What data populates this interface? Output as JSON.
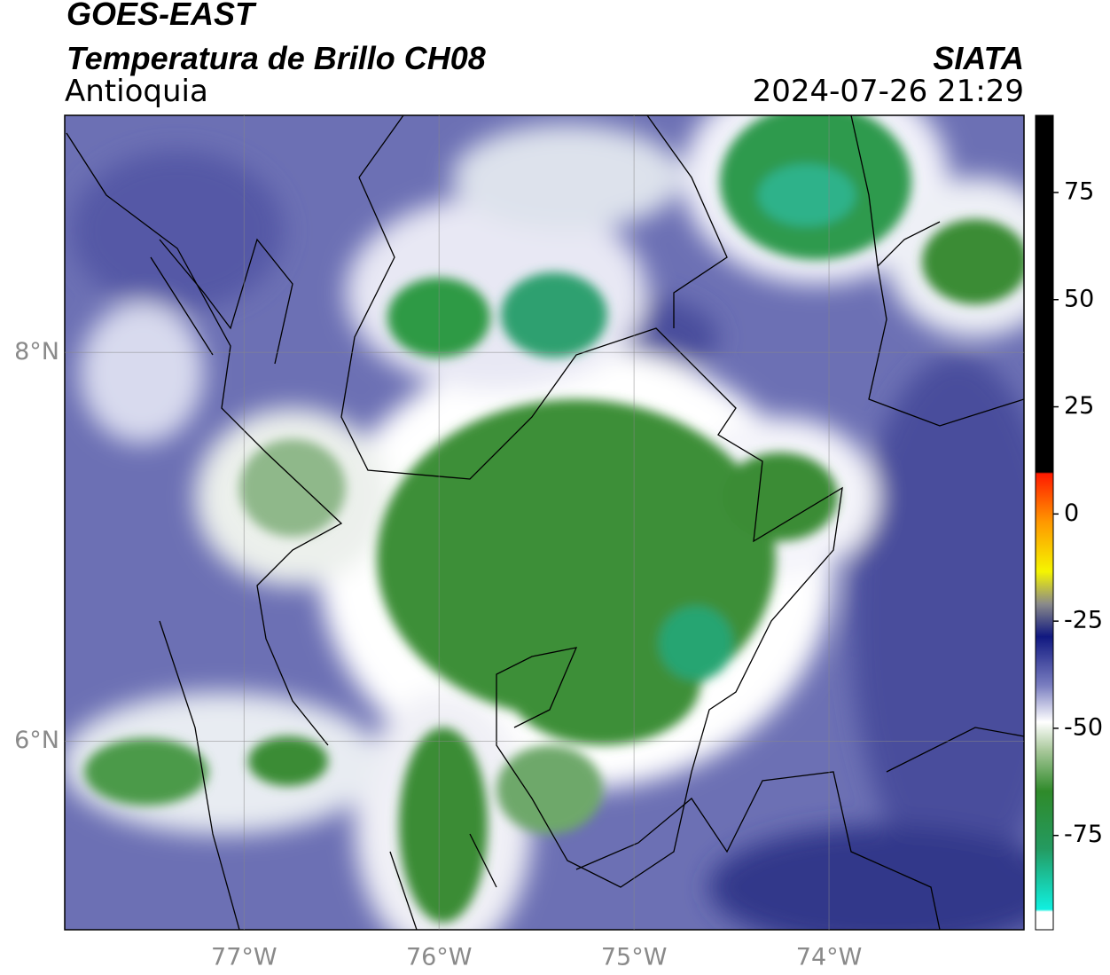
{
  "header": {
    "title": "GOES-EAST",
    "subtitle": "Temperatura de Brillo CH08",
    "region": "Antioquia",
    "source": "SIATA",
    "datetime": "2024-07-26 21:29"
  },
  "map": {
    "xlim": [
      -77.92,
      -73.0
    ],
    "ylim": [
      5.03,
      9.22
    ],
    "xticks": [
      {
        "value": -77,
        "label": "77°W"
      },
      {
        "value": -76,
        "label": "76°W"
      },
      {
        "value": -75,
        "label": "75°W"
      },
      {
        "value": -74,
        "label": "74°W"
      }
    ],
    "yticks": [
      {
        "value": 6,
        "label": "6°N"
      },
      {
        "value": 8,
        "label": "8°N"
      }
    ],
    "grid": true
  },
  "colorbar": {
    "clim": [
      -97,
      93
    ],
    "ticks": [
      -75,
      -50,
      -25,
      0,
      25,
      50,
      75
    ]
  }
}
